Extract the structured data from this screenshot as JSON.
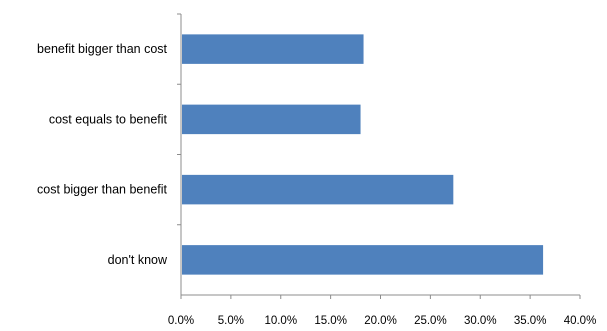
{
  "chart_data": {
    "type": "bar",
    "orientation": "horizontal",
    "title": "",
    "xlabel": "",
    "ylabel": "",
    "categories": [
      "benefit bigger than cost",
      "cost equals to benefit",
      "cost bigger than benefit",
      "don't know"
    ],
    "values": [
      18.3,
      18.0,
      27.3,
      36.3
    ],
    "xlim": [
      0,
      40
    ],
    "x_ticks": [
      "0.0%",
      "5.0%",
      "10.0%",
      "15.0%",
      "20.0%",
      "25.0%",
      "30.0%",
      "35.0%",
      "40.0%"
    ],
    "unit": "%",
    "grid": false,
    "legend": "none",
    "bar_color": "#4f81bd"
  }
}
